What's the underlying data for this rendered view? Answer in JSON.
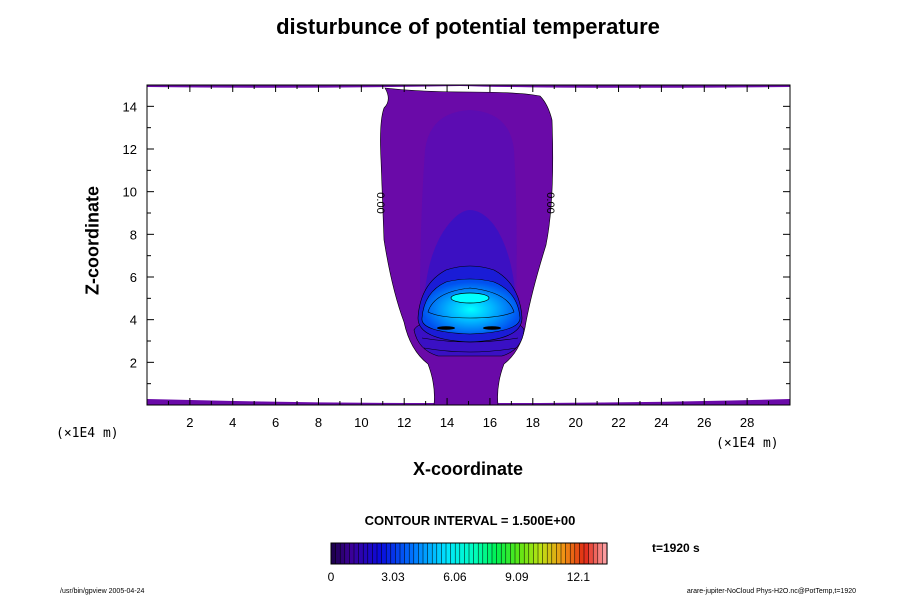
{
  "chart_data": {
    "type": "contour",
    "title": "disturbunce of potential temperature",
    "xlabel": "X-coordinate",
    "ylabel": "Z-coordinate",
    "x_unit": "(×1E4 m)",
    "y_unit": "(×1E4 m)",
    "xlim": [
      0,
      30
    ],
    "ylim": [
      0,
      15
    ],
    "x_ticks": [
      2,
      4,
      6,
      8,
      10,
      12,
      14,
      16,
      18,
      20,
      22,
      24,
      26,
      28
    ],
    "y_ticks": [
      2,
      4,
      6,
      8,
      10,
      12,
      14
    ],
    "contour_labels": [
      "0.00",
      "0.00"
    ],
    "contour_interval": "CONTOUR INTERVAL = 1.500E+00",
    "time": "t=1920 s",
    "colorbar": {
      "min": 0,
      "max": 13.5,
      "tick_labels": [
        "0",
        "3.03",
        "6.06",
        "9.09",
        "12.1"
      ],
      "tick_values": [
        0,
        3.03,
        6.06,
        9.09,
        12.1
      ]
    },
    "colors": {
      "level0": "#6a0aa8",
      "level1": "#5a0cb4",
      "level2": "#3a10c4",
      "level3": "#1a18d8",
      "level4": "#0048f0",
      "level5": "#00a8ff",
      "level6": "#00ffff"
    }
  },
  "footer": {
    "left": "/usr/bin/gpview 2005-04-24",
    "right": "arare-jupiter-NoCloud Phys-H2O.nc@PotTemp,t=1920"
  }
}
